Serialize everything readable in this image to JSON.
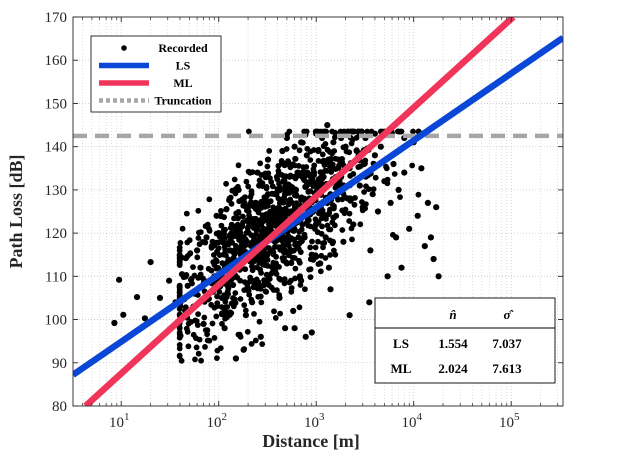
{
  "chart_data": {
    "type": "scatter",
    "title": "",
    "xlabel": "Distance [m]",
    "ylabel": "Path Loss [dB]",
    "x_scale": "log10",
    "xlim": [
      3.2,
      340000
    ],
    "ylim": [
      80,
      170
    ],
    "x_ticks": [
      {
        "value": 10,
        "base": "10",
        "exp": "1"
      },
      {
        "value": 100,
        "base": "10",
        "exp": "2"
      },
      {
        "value": 1000,
        "base": "10",
        "exp": "3"
      },
      {
        "value": 10000,
        "base": "10",
        "exp": "4"
      },
      {
        "value": 100000,
        "base": "10",
        "exp": "5"
      }
    ],
    "y_ticks": [
      80,
      90,
      100,
      110,
      120,
      130,
      140,
      150,
      160,
      170
    ],
    "grid": true,
    "legend_position": "top-left",
    "colors": {
      "recorded": "#000000",
      "ls": "#0a47d6",
      "ml": "#f0345a",
      "truncation": "#a6a6a6",
      "grid": "#c8c8c8",
      "axis": "#262626"
    },
    "series": [
      {
        "name": "Recorded",
        "kind": "scatter",
        "points": [
          [
            8.5,
            99.2
          ],
          [
            9.5,
            109.2
          ],
          [
            10.5,
            101.1
          ],
          [
            14.5,
            105.2
          ],
          [
            17.5,
            100.3
          ],
          [
            20,
            113.3
          ],
          [
            25,
            105
          ],
          [
            31,
            109
          ],
          [
            36,
            104
          ],
          [
            42,
            110.5
          ],
          [
            46,
            114.2
          ],
          [
            48,
            107.8
          ],
          [
            52,
            109.2
          ],
          [
            55,
            103
          ],
          [
            60,
            116
          ],
          [
            65,
            112
          ],
          [
            70,
            99
          ],
          [
            75,
            106
          ],
          [
            85,
            117
          ],
          [
            90,
            110
          ],
          [
            95,
            113.5
          ],
          [
            100,
            120
          ],
          [
            108,
            105
          ],
          [
            115,
            98
          ],
          [
            120,
            125.5
          ],
          [
            130,
            116
          ],
          [
            140,
            108
          ],
          [
            150,
            121
          ],
          [
            160,
            130
          ],
          [
            170,
            113
          ],
          [
            180,
            119
          ],
          [
            190,
            101
          ],
          [
            200,
            126
          ],
          [
            210,
            134
          ],
          [
            220,
            109
          ],
          [
            230,
            122
          ],
          [
            240,
            127
          ],
          [
            250,
            118
          ],
          [
            260,
            131
          ],
          [
            270,
            96
          ],
          [
            280,
            114
          ],
          [
            290,
            124
          ],
          [
            300,
            120
          ],
          [
            320,
            137
          ],
          [
            340,
            116
          ],
          [
            360,
            111
          ],
          [
            380,
            129
          ],
          [
            400,
            125
          ],
          [
            420,
            105
          ],
          [
            440,
            119
          ],
          [
            460,
            132
          ],
          [
            480,
            98
          ],
          [
            500,
            113
          ],
          [
            520,
            136
          ],
          [
            540,
            127
          ],
          [
            560,
            121
          ],
          [
            580,
            102
          ],
          [
            600,
            140
          ],
          [
            620,
            130
          ],
          [
            640,
            117
          ],
          [
            660,
            124
          ],
          [
            680,
            110
          ],
          [
            700,
            141
          ],
          [
            720,
            133
          ],
          [
            740,
            126
          ],
          [
            760,
            119
          ],
          [
            780,
            96
          ],
          [
            800,
            138
          ],
          [
            850,
            128
          ],
          [
            900,
            115
          ],
          [
            950,
            134
          ],
          [
            1000,
            122
          ],
          [
            1050,
            139
          ],
          [
            1100,
            126
          ],
          [
            1150,
            142
          ],
          [
            1200,
            131
          ],
          [
            1250,
            119
          ],
          [
            1300,
            136
          ],
          [
            1350,
            112
          ],
          [
            1400,
            129
          ],
          [
            1500,
            141
          ],
          [
            1600,
            124
          ],
          [
            1700,
            137
          ],
          [
            1800,
            133
          ],
          [
            1900,
            118
          ],
          [
            2000,
            140
          ],
          [
            2100,
            128
          ],
          [
            2200,
            135
          ],
          [
            2400,
            122
          ],
          [
            2600,
            139
          ],
          [
            2800,
            131
          ],
          [
            3000,
            126
          ],
          [
            3200,
            142
          ],
          [
            3400,
            134
          ],
          [
            3600,
            116
          ],
          [
            3800,
            129
          ],
          [
            4000,
            138
          ],
          [
            4300,
            125
          ],
          [
            4600,
            140
          ],
          [
            5000,
            132
          ],
          [
            5400,
            110
          ],
          [
            5800,
            127
          ],
          [
            6200,
            136
          ],
          [
            6600,
            119
          ],
          [
            7000,
            130
          ],
          [
            7500,
            112
          ],
          [
            8000,
            134
          ],
          [
            9000,
            121
          ],
          [
            10000,
            141
          ],
          [
            11000,
            124
          ],
          [
            12000,
            135
          ],
          [
            13000,
            117
          ],
          [
            14000,
            127
          ],
          [
            15000,
            119
          ],
          [
            16000,
            114
          ],
          [
            17000,
            126
          ],
          [
            18000,
            110
          ],
          [
            1300,
            145
          ],
          [
            150,
            91
          ],
          [
            180,
            93
          ],
          [
            220,
            104
          ],
          [
            900,
            97
          ],
          [
            1400,
            107
          ],
          [
            2200,
            101
          ],
          [
            3500,
            104
          ],
          [
            700,
            109
          ],
          [
            1100,
            113
          ],
          [
            600,
            98
          ],
          [
            130,
            128
          ],
          [
            95,
            124
          ],
          [
            75,
            119
          ],
          [
            250,
            134
          ],
          [
            320,
            129
          ],
          [
            450,
            139
          ],
          [
            2800,
            143
          ],
          [
            4000,
            143
          ],
          [
            6000,
            143
          ],
          [
            8000,
            142
          ],
          [
            1800,
            142
          ],
          [
            1000,
            143
          ],
          [
            500,
            142
          ]
        ]
      },
      {
        "name": "LS",
        "kind": "line",
        "x": [
          3.2,
          340000
        ],
        "y": [
          87.2,
          165.2
        ]
      },
      {
        "name": "ML",
        "kind": "line",
        "x": [
          4.3,
          105000
        ],
        "y": [
          80,
          170
        ]
      },
      {
        "name": "Truncation",
        "kind": "hline",
        "y": 142.5
      }
    ],
    "legend": [
      {
        "label": "Recorded",
        "marker": "dot"
      },
      {
        "label": "LS",
        "marker": "line-ls"
      },
      {
        "label": "ML",
        "marker": "line-ml"
      },
      {
        "label": "Truncation",
        "marker": "dotted"
      }
    ],
    "table": {
      "header": [
        "",
        "n̂",
        "σ̂"
      ],
      "rows": [
        [
          "LS",
          "1.554",
          "7.037"
        ],
        [
          "ML",
          "2.024",
          "7.613"
        ]
      ]
    }
  }
}
